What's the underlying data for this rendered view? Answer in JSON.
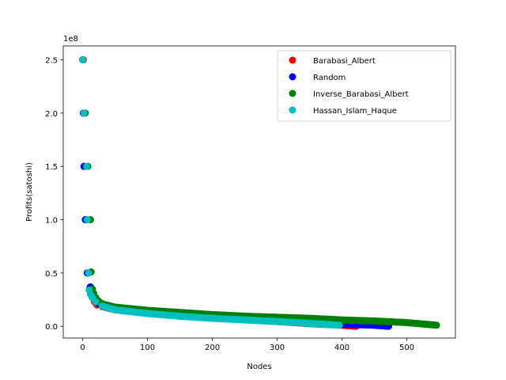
{
  "chart_data": {
    "type": "scatter",
    "title": "",
    "xlabel": "Nodes",
    "ylabel": "Profits(satoshi)",
    "y_offset_label": "1e8",
    "y_multiplier": 100000000,
    "xlim": [
      -30,
      575
    ],
    "ylim": [
      -11000000,
      263000000
    ],
    "x_ticks": [
      0,
      100,
      200,
      300,
      400,
      500
    ],
    "x_tick_labels": [
      "0",
      "100",
      "200",
      "300",
      "400",
      "500"
    ],
    "y_ticks": [
      0,
      50000000,
      100000000,
      150000000,
      200000000,
      250000000
    ],
    "y_tick_labels": [
      "0.0",
      "0.5",
      "1.0",
      "1.5",
      "2.0",
      "2.5"
    ],
    "grid": false,
    "legend_position": "top-right",
    "series": [
      {
        "name": "Barabasi_Albert",
        "color": "#ff0000",
        "n_nodes": 422,
        "head": [
          [
            1,
            250000000
          ],
          [
            2,
            200000000
          ],
          [
            3,
            150000000
          ],
          [
            5,
            100000000
          ],
          [
            8,
            50000000
          ],
          [
            11,
            36000000
          ],
          [
            13,
            32000000
          ],
          [
            15,
            27000000
          ],
          [
            18,
            23000000
          ],
          [
            22,
            20000000
          ]
        ],
        "tail": [
          [
            30,
            18500000
          ],
          [
            50,
            15500000
          ],
          [
            100,
            12500000
          ],
          [
            150,
            10000000
          ],
          [
            200,
            8000000
          ],
          [
            250,
            6500000
          ],
          [
            300,
            4500000
          ],
          [
            350,
            2500000
          ],
          [
            400,
            1000000
          ],
          [
            422,
            0
          ]
        ]
      },
      {
        "name": "Random",
        "color": "#0000ff",
        "n_nodes": 473,
        "head": [
          [
            0,
            250000000
          ],
          [
            1,
            200000000
          ],
          [
            2,
            150000000
          ],
          [
            4,
            100000000
          ],
          [
            7,
            50000000
          ],
          [
            12,
            37000000
          ],
          [
            14,
            33000000
          ],
          [
            17,
            28000000
          ],
          [
            20,
            24000000
          ],
          [
            25,
            21000000
          ]
        ],
        "tail": [
          [
            30,
            19500000
          ],
          [
            50,
            16500000
          ],
          [
            100,
            13500000
          ],
          [
            150,
            11000000
          ],
          [
            200,
            9000000
          ],
          [
            250,
            7500000
          ],
          [
            300,
            5500000
          ],
          [
            350,
            3500000
          ],
          [
            400,
            2000000
          ],
          [
            450,
            1000000
          ],
          [
            473,
            0
          ]
        ]
      },
      {
        "name": "Inverse_Barabasi_Albert",
        "color": "#008000",
        "n_nodes": 547,
        "head": [
          [
            0,
            250000000
          ],
          [
            4,
            200000000
          ],
          [
            8,
            150000000
          ],
          [
            12,
            100000000
          ],
          [
            13,
            51000000
          ],
          [
            15,
            35000000
          ],
          [
            17,
            31000000
          ],
          [
            20,
            27000000
          ],
          [
            24,
            24000000
          ],
          [
            28,
            22000000
          ]
        ],
        "tail": [
          [
            30,
            21000000
          ],
          [
            50,
            18000000
          ],
          [
            100,
            15000000
          ],
          [
            150,
            13000000
          ],
          [
            200,
            11000000
          ],
          [
            250,
            9500000
          ],
          [
            300,
            8500000
          ],
          [
            350,
            7500000
          ],
          [
            400,
            6000000
          ],
          [
            450,
            5000000
          ],
          [
            500,
            3500000
          ],
          [
            547,
            1000000
          ]
        ]
      },
      {
        "name": "Hassan_Islam_Haque",
        "color": "#00bfbf",
        "n_nodes": 397,
        "head": [
          [
            0,
            250000000
          ],
          [
            2,
            200000000
          ],
          [
            6,
            150000000
          ],
          [
            7,
            100000000
          ],
          [
            9,
            50000000
          ],
          [
            10,
            34000000
          ],
          [
            12,
            30000000
          ],
          [
            14,
            28000000
          ],
          [
            16,
            26000000
          ],
          [
            20,
            23000000
          ]
        ],
        "tail": [
          [
            30,
            19000000
          ],
          [
            50,
            15500000
          ],
          [
            100,
            12000000
          ],
          [
            150,
            9500000
          ],
          [
            200,
            7500000
          ],
          [
            250,
            6000000
          ],
          [
            300,
            4500000
          ],
          [
            350,
            2800000
          ],
          [
            397,
            1000000
          ]
        ]
      }
    ]
  }
}
